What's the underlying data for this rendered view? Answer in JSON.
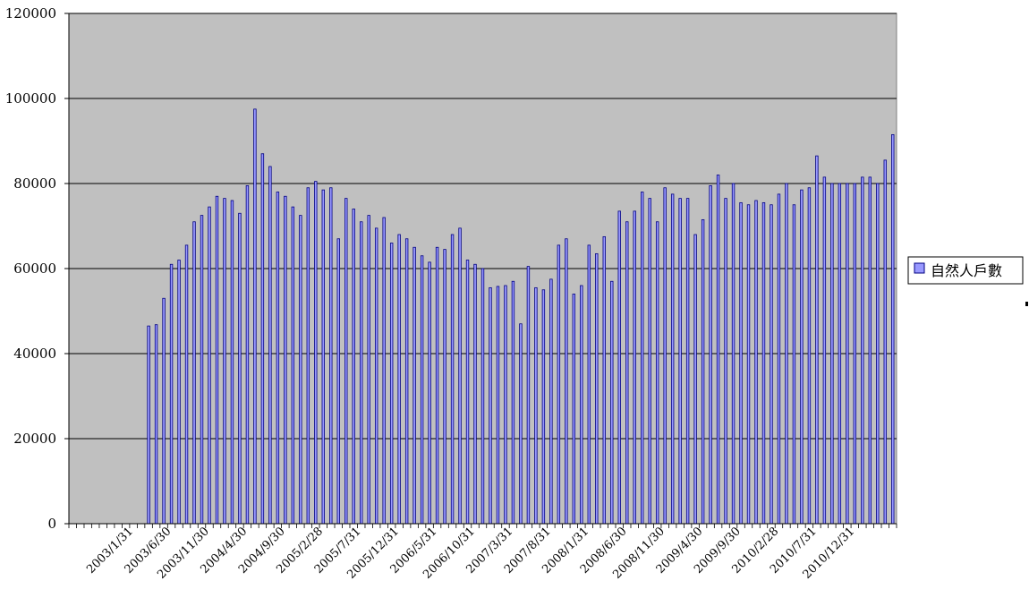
{
  "chart_data": {
    "type": "bar",
    "title": "",
    "xlabel": "",
    "ylabel": "",
    "ylim": [
      0,
      120000
    ],
    "y_ticks": [
      "0",
      "20000",
      "40000",
      "60000",
      "80000",
      "100000",
      "120000"
    ],
    "x_tick_labels": [
      "2003/1/31",
      "2003/6/30",
      "2003/11/30",
      "2004/4/30",
      "2004/9/30",
      "2005/2/28",
      "2005/7/31",
      "2005/12/31",
      "2006/5/31",
      "2006/10/31",
      "2007/3/31",
      "2007/8/31",
      "2008/1/31",
      "2008/6/30",
      "2008/11/30",
      "2009/4/30",
      "2009/9/30",
      "2010/2/28",
      "2010/7/31",
      "2010/12/31"
    ],
    "grid": true,
    "background_color": "#c0c0c0",
    "bar_color": "#9999ff",
    "bar_edge_color": "#000080",
    "legend_position": "right",
    "series": [
      {
        "name": "自然人戶數",
        "values": [
          0,
          0,
          0,
          0,
          0,
          0,
          0,
          0,
          0,
          0,
          46500,
          46800,
          53000,
          61000,
          62000,
          65500,
          71000,
          72500,
          74500,
          77000,
          76500,
          76000,
          73000,
          79500,
          97500,
          87000,
          84000,
          78000,
          77000,
          74500,
          72500,
          79000,
          80500,
          78500,
          79000,
          67000,
          76500,
          74000,
          71000,
          72500,
          69500,
          72000,
          66000,
          68000,
          67000,
          65000,
          63000,
          61500,
          65000,
          64500,
          68000,
          69500,
          62000,
          61000,
          60000,
          55500,
          55800,
          56000,
          57000,
          47000,
          60500,
          55500,
          55000,
          57500,
          65500,
          67000,
          54000,
          56000,
          65500,
          63500,
          67500,
          57000,
          73500,
          71000,
          73500,
          78000,
          76500,
          71000,
          79000,
          77500,
          76500,
          76500,
          68000,
          71500,
          79500,
          82000,
          76500,
          80000,
          75500,
          75000,
          76000,
          75500,
          75000,
          77500,
          80000,
          75000,
          78500,
          79000,
          86500,
          81500,
          80000,
          80000,
          80000,
          80000,
          81500,
          81500,
          80000,
          85500,
          91500
        ]
      }
    ]
  }
}
